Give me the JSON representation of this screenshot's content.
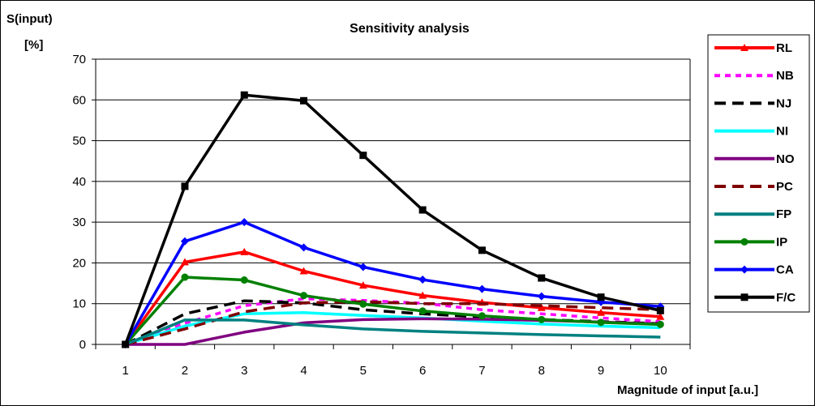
{
  "chart_data": {
    "type": "line",
    "title": "Sensitivity analysis",
    "ylabel_line1": "S(input)",
    "ylabel_line2": "[%]",
    "xlabel": "Magnitude of input [a.u.]",
    "x": [
      1,
      2,
      3,
      4,
      5,
      6,
      7,
      8,
      9,
      10
    ],
    "ylim": [
      0,
      70
    ],
    "yticks": [
      0,
      10,
      20,
      30,
      40,
      50,
      60,
      70
    ],
    "grid": "horizontal",
    "legend_position": "right",
    "series": [
      {
        "name": "RL",
        "color": "#ff0000",
        "dash": "solid",
        "marker": "triangle",
        "values": [
          0,
          20.2,
          22.7,
          18.0,
          14.5,
          12.0,
          10.3,
          9.0,
          7.8,
          6.8
        ]
      },
      {
        "name": "NB",
        "color": "#ff00ff",
        "dash": "dotted",
        "marker": "none",
        "values": [
          0,
          5.2,
          9.5,
          11.2,
          10.8,
          10.1,
          8.5,
          7.5,
          6.5,
          5.6
        ]
      },
      {
        "name": "NJ",
        "color": "#000000",
        "dash": "dashed",
        "marker": "none",
        "values": [
          0,
          7.5,
          10.7,
          10.2,
          8.5,
          7.5,
          6.7,
          6.1,
          5.6,
          5.1
        ]
      },
      {
        "name": "NI",
        "color": "#00ffff",
        "dash": "solid",
        "marker": "none",
        "values": [
          0,
          4.5,
          7.5,
          7.8,
          7.1,
          6.5,
          5.7,
          5.0,
          4.5,
          4.1
        ]
      },
      {
        "name": "NO",
        "color": "#800080",
        "dash": "solid",
        "marker": "none",
        "values": [
          0,
          0,
          3.0,
          5.3,
          6.1,
          6.3,
          6.2,
          5.9,
          5.5,
          5.0
        ]
      },
      {
        "name": "PC",
        "color": "#800000",
        "dash": "dashed",
        "marker": "none",
        "values": [
          0,
          3.8,
          8.0,
          10.2,
          10.5,
          10.0,
          10.0,
          9.5,
          9.0,
          8.5
        ]
      },
      {
        "name": "FP",
        "color": "#008080",
        "dash": "solid",
        "marker": "none",
        "values": [
          0,
          6.0,
          6.0,
          4.8,
          3.8,
          3.2,
          2.8,
          2.4,
          2.1,
          1.8
        ]
      },
      {
        "name": "IP",
        "color": "#008000",
        "dash": "solid",
        "marker": "circle",
        "values": [
          0,
          16.5,
          15.8,
          12.0,
          9.9,
          8.2,
          7.0,
          6.1,
          5.4,
          4.9
        ]
      },
      {
        "name": "CA",
        "color": "#0000ff",
        "dash": "solid",
        "marker": "diamond",
        "values": [
          0,
          25.3,
          30.0,
          23.8,
          19.0,
          15.9,
          13.6,
          11.8,
          10.4,
          9.3
        ]
      },
      {
        "name": "F/C",
        "color": "#000000",
        "dash": "solid",
        "marker": "square",
        "values": [
          0,
          38.8,
          61.2,
          59.8,
          46.4,
          33.0,
          23.1,
          16.3,
          11.6,
          8.3
        ]
      }
    ]
  }
}
